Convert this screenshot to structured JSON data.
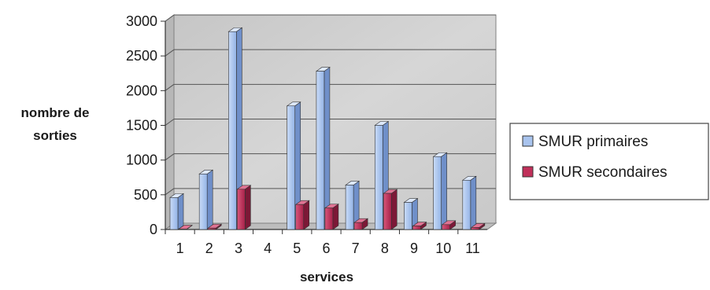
{
  "chart_data": {
    "type": "bar",
    "categories": [
      "1",
      "2",
      "3",
      "4",
      "5",
      "6",
      "7",
      "8",
      "9",
      "10",
      "11"
    ],
    "series": [
      {
        "name": "SMUR primaires",
        "color": "#a9c4ee",
        "values": [
          460,
          800,
          2850,
          0,
          1780,
          2280,
          640,
          1500,
          390,
          1050,
          710
        ]
      },
      {
        "name": "SMUR secondaires",
        "color": "#c0305a",
        "values": [
          5,
          20,
          580,
          0,
          360,
          310,
          100,
          520,
          50,
          70,
          30
        ]
      }
    ],
    "yticks": [
      "0",
      "500",
      "1000",
      "1500",
      "2000",
      "2500",
      "3000"
    ],
    "ylim": [
      0,
      3000
    ],
    "ylabel_line1": "nombre de",
    "ylabel_line2": "sorties",
    "xlabel": "services",
    "grid": true,
    "legend_position": "right"
  }
}
